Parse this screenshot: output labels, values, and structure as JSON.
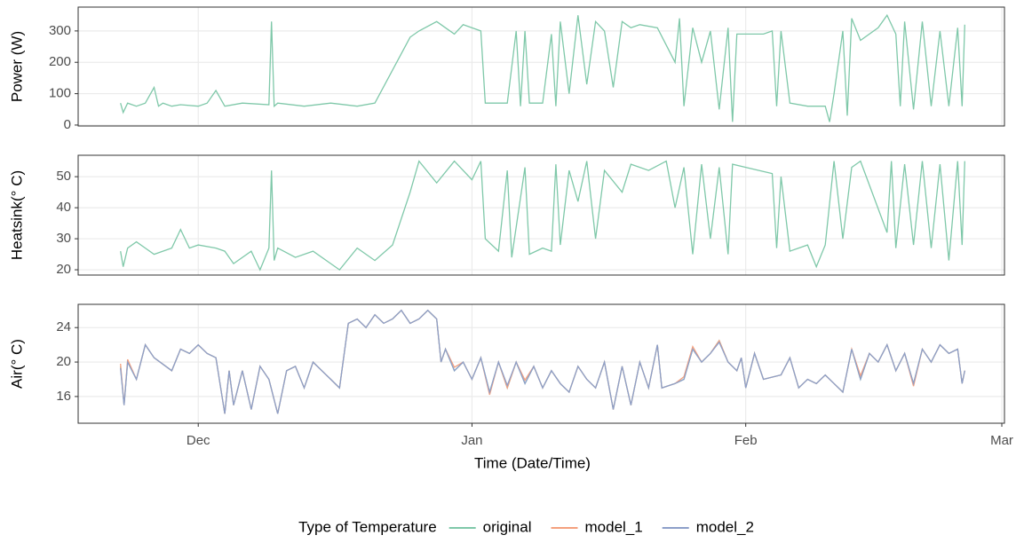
{
  "chart_data": [
    {
      "type": "line",
      "ylabel": "Power (W)",
      "xlim": [
        16.4,
        121.3
      ],
      "ylim": [
        -3,
        376
      ],
      "yticks": [
        0,
        100,
        200,
        300
      ],
      "xticks": [
        30,
        61,
        92,
        121
      ],
      "grid": true,
      "x": [
        21.2,
        21.5,
        22,
        23,
        24,
        25,
        25.5,
        26,
        27,
        28,
        30,
        31,
        32,
        33,
        35,
        38,
        38.3,
        38.6,
        39,
        42,
        45,
        48,
        50,
        54,
        55,
        57,
        59,
        60,
        62,
        62.5,
        65,
        66,
        66.5,
        67,
        67.5,
        69,
        70,
        70.5,
        71,
        72,
        73,
        74,
        75,
        76,
        77,
        78,
        79,
        80,
        82,
        84,
        84.5,
        85,
        86,
        87,
        88,
        89,
        90,
        90.5,
        91,
        94,
        95,
        95.5,
        96,
        97,
        99,
        101,
        101.5,
        102,
        103,
        103.5,
        104,
        105,
        107,
        108,
        109,
        109.5,
        110,
        111,
        112,
        113,
        114,
        115,
        116,
        116.5,
        116.8
      ],
      "series": [
        {
          "color": "#7fc8a9",
          "values": [
            70,
            40,
            70,
            60,
            70,
            120,
            60,
            70,
            60,
            65,
            60,
            70,
            110,
            60,
            70,
            65,
            330,
            60,
            70,
            60,
            70,
            60,
            70,
            280,
            300,
            330,
            290,
            320,
            300,
            70,
            70,
            300,
            60,
            300,
            70,
            70,
            290,
            60,
            330,
            100,
            350,
            130,
            330,
            300,
            120,
            330,
            310,
            320,
            310,
            200,
            340,
            60,
            310,
            200,
            300,
            50,
            310,
            10,
            290,
            290,
            300,
            60,
            300,
            70,
            60,
            60,
            10,
            100,
            300,
            30,
            340,
            270,
            310,
            350,
            290,
            60,
            330,
            50,
            330,
            60,
            300,
            60,
            310,
            60,
            320
          ]
        }
      ]
    },
    {
      "type": "line",
      "ylabel": "Heatsink(° C)",
      "xlim": [
        16.4,
        121.3
      ],
      "ylim": [
        18.3,
        56.9
      ],
      "yticks": [
        20,
        30,
        40,
        50
      ],
      "xticks": [
        30,
        61,
        92,
        121
      ],
      "grid": true,
      "x": [
        21.2,
        21.5,
        22,
        23,
        24,
        25,
        27,
        28,
        29,
        30,
        32,
        33,
        34,
        36,
        37,
        38,
        38.3,
        38.6,
        39,
        41,
        43,
        46,
        48,
        50,
        52,
        54,
        55,
        57,
        59,
        61,
        62,
        62.5,
        64,
        65,
        65.5,
        67,
        67.5,
        69,
        70,
        70.5,
        71,
        72,
        73,
        74,
        75,
        76,
        78,
        79,
        81,
        83,
        84,
        85,
        86,
        87,
        88,
        89,
        90,
        90.5,
        92,
        95,
        95.5,
        96,
        97,
        99,
        100,
        101,
        102,
        103,
        104,
        105,
        108,
        108.5,
        109,
        110,
        111,
        112,
        113,
        114,
        115,
        116,
        116.5,
        116.8
      ],
      "series": [
        {
          "color": "#7fc8a9",
          "values": [
            26,
            21,
            27,
            29,
            27,
            25,
            27,
            33,
            27,
            28,
            27,
            26,
            22,
            26,
            20,
            27,
            52,
            23,
            27,
            24,
            26,
            20,
            27,
            23,
            28,
            45,
            55,
            48,
            55,
            49,
            55,
            30,
            26,
            52,
            24,
            53,
            25,
            27,
            26,
            54,
            28,
            52,
            42,
            55,
            30,
            52,
            45,
            54,
            52,
            55,
            40,
            53,
            25,
            54,
            30,
            53,
            25,
            54,
            53,
            51,
            27,
            50,
            26,
            28,
            21,
            28,
            55,
            30,
            53,
            55,
            32,
            55,
            27,
            54,
            28,
            55,
            27,
            54,
            23,
            55,
            28,
            55
          ]
        }
      ]
    },
    {
      "type": "line",
      "ylabel": "Air(° C)",
      "xlabel": "Time (Date/Time)",
      "legend_title": "Type of Temperature",
      "legend": "bottom",
      "xlim": [
        16.4,
        121.3
      ],
      "ylim": [
        12.9,
        26.7
      ],
      "yticks": [
        16,
        20,
        24
      ],
      "xticks": [
        {
          "value": 30,
          "label": "Dec"
        },
        {
          "value": 61,
          "label": "Jan"
        },
        {
          "value": 92,
          "label": "Feb"
        },
        {
          "value": 121,
          "label": "Mar"
        }
      ],
      "grid": true,
      "x": [
        21.2,
        21.6,
        22,
        23,
        24,
        25,
        27,
        28,
        29,
        30,
        31,
        32,
        33,
        33.5,
        34,
        35,
        36,
        37,
        38,
        39,
        40,
        41,
        42,
        43,
        44,
        45,
        46,
        47,
        48,
        49,
        50,
        51,
        52,
        53,
        54,
        55,
        56,
        57,
        57.5,
        58,
        59,
        60,
        61,
        62,
        63,
        64,
        65,
        66,
        67,
        68,
        69,
        70,
        71,
        72,
        73,
        74,
        75,
        76,
        77,
        78,
        79,
        80,
        81,
        82,
        82.5,
        84,
        85,
        86,
        87,
        88,
        89,
        90,
        91,
        91.5,
        92,
        93,
        94,
        96,
        97,
        98,
        99,
        100,
        101,
        102,
        103,
        104,
        105,
        106,
        107,
        108,
        109,
        110,
        111,
        112,
        113,
        114,
        115,
        116,
        116.5,
        116.8
      ],
      "series": [
        {
          "name": "original",
          "color": "#7fc8a9",
          "values": [
            19.5,
            15,
            20,
            18,
            22,
            20.5,
            19,
            21.5,
            21,
            22,
            21,
            20.5,
            14,
            19,
            15,
            19,
            14.5,
            19.5,
            18,
            14,
            19,
            19.5,
            17,
            20,
            19,
            18,
            17,
            24.5,
            25,
            24,
            25.5,
            24.5,
            25,
            26,
            24.5,
            25,
            26,
            25,
            20,
            21.5,
            19,
            20,
            18,
            20.5,
            16.5,
            20,
            17,
            20,
            17.5,
            19.5,
            17,
            19,
            17.5,
            16.5,
            19.5,
            18,
            17,
            20,
            14.5,
            19.5,
            15,
            20,
            17,
            22,
            17,
            17.5,
            18,
            21.5,
            20,
            21,
            22.5,
            20,
            19,
            20.5,
            17,
            21,
            18,
            18.5,
            20.5,
            17,
            18,
            17.5,
            18.5,
            17.5,
            16.5,
            21.5,
            18,
            21,
            20,
            22,
            19,
            21,
            17.5,
            21.5,
            20,
            22,
            21,
            21.5,
            17.5,
            19
          ]
        },
        {
          "name": "model_1",
          "color": "#f4a07e",
          "values": [
            19.8,
            15,
            20.3,
            18,
            22,
            20.5,
            19,
            21.5,
            21,
            22,
            21,
            20.5,
            14,
            19,
            15,
            19,
            14.5,
            19.5,
            18,
            14,
            19,
            19.5,
            17,
            20,
            19,
            18,
            17,
            24.5,
            25,
            24,
            25.5,
            24.5,
            25,
            26,
            24.5,
            25,
            26,
            25,
            20,
            21.5,
            19.4,
            20,
            18,
            20.5,
            16.2,
            20,
            17,
            20,
            17.9,
            19.5,
            17,
            19,
            17.5,
            16.5,
            19.5,
            18,
            17,
            20,
            14.5,
            19.5,
            15,
            20,
            17,
            22,
            17,
            17.5,
            18.3,
            21.8,
            20,
            21,
            22.5,
            20,
            19,
            20.5,
            17,
            21,
            18,
            18.5,
            20.5,
            17,
            18,
            17.5,
            18.5,
            17.5,
            16.5,
            21.5,
            18.4,
            21,
            20,
            22,
            19,
            21,
            17.2,
            21.5,
            20,
            22,
            21,
            21.5,
            17.5,
            19
          ]
        },
        {
          "name": "model_2",
          "color": "#8d9fc9",
          "values": [
            19.3,
            15,
            20,
            18,
            22,
            20.5,
            19,
            21.5,
            21,
            22,
            21,
            20.5,
            14,
            19,
            15,
            19,
            14.5,
            19.5,
            18,
            14,
            19,
            19.5,
            17,
            20,
            19,
            18,
            17,
            24.5,
            25,
            24,
            25.5,
            24.5,
            25,
            26,
            24.5,
            25,
            26,
            25,
            20,
            21.5,
            19,
            20,
            18,
            20.5,
            16.5,
            20,
            17.3,
            20,
            17.5,
            19.5,
            17,
            19,
            17.5,
            16.5,
            19.5,
            18,
            17,
            20,
            14.5,
            19.5,
            15,
            20,
            17,
            22,
            17,
            17.5,
            18,
            21.5,
            20,
            21,
            22.3,
            20,
            19,
            20.5,
            17,
            21,
            18,
            18.5,
            20.5,
            17,
            18,
            17.5,
            18.5,
            17.5,
            16.5,
            21.5,
            18,
            21,
            20,
            22,
            19,
            21,
            17.5,
            21.5,
            20,
            22,
            21,
            21.5,
            17.5,
            19
          ]
        }
      ]
    }
  ]
}
